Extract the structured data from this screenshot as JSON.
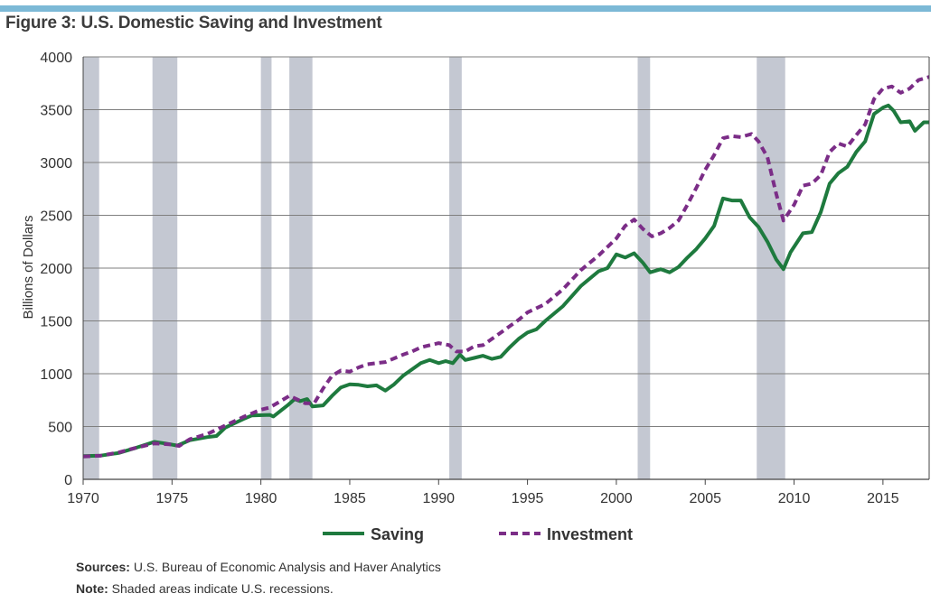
{
  "figure_title": "Figure 3: U.S. Domestic Saving and Investment",
  "sources_label": "Sources:",
  "sources_text": "U.S. Bureau of Economic Analysis and Haver Analytics",
  "note_label": "Note:",
  "note_text": "Shaded areas indicate U.S. recessions.",
  "colors": {
    "saving": "#1e7a3e",
    "investment": "#7b2d87",
    "recession": "#c4c8d2",
    "grid": "#7f7f7f",
    "rule": "#7cb9d6"
  },
  "chart_data": {
    "type": "line",
    "title": "",
    "xlabel": "",
    "ylabel": "Billions of Dollars",
    "xlim": [
      1970,
      2017.6
    ],
    "ylim": [
      0,
      4000
    ],
    "x_ticks": [
      1970,
      1975,
      1980,
      1985,
      1990,
      1995,
      2000,
      2005,
      2010,
      2015
    ],
    "y_ticks": [
      0,
      500,
      1000,
      1500,
      2000,
      2500,
      3000,
      3500,
      4000
    ],
    "grid": "horizontal",
    "legend": "bottom",
    "recessions": [
      [
        1969.9,
        1970.9
      ],
      [
        1973.9,
        1975.3
      ],
      [
        1980.0,
        1980.6
      ],
      [
        1981.6,
        1982.9
      ],
      [
        1990.6,
        1991.3
      ],
      [
        2001.2,
        2001.9
      ],
      [
        2007.9,
        2009.5
      ]
    ],
    "series": [
      {
        "name": "Saving",
        "style": "solid",
        "points": [
          [
            1970,
            220
          ],
          [
            1971,
            225
          ],
          [
            1972,
            250
          ],
          [
            1973,
            300
          ],
          [
            1974,
            355
          ],
          [
            1974.6,
            340
          ],
          [
            1975.3,
            320
          ],
          [
            1976,
            370
          ],
          [
            1977,
            400
          ],
          [
            1977.5,
            410
          ],
          [
            1978,
            490
          ],
          [
            1979,
            570
          ],
          [
            1979.5,
            605
          ],
          [
            1980.5,
            610
          ],
          [
            1980.7,
            595
          ],
          [
            1981.5,
            700
          ],
          [
            1981.9,
            760
          ],
          [
            1982.2,
            740
          ],
          [
            1982.6,
            760
          ],
          [
            1982.9,
            690
          ],
          [
            1983.5,
            700
          ],
          [
            1984,
            790
          ],
          [
            1984.5,
            870
          ],
          [
            1985,
            900
          ],
          [
            1985.5,
            895
          ],
          [
            1986,
            880
          ],
          [
            1986.5,
            890
          ],
          [
            1987,
            840
          ],
          [
            1987.5,
            900
          ],
          [
            1988,
            980
          ],
          [
            1988.5,
            1040
          ],
          [
            1989,
            1100
          ],
          [
            1989.5,
            1130
          ],
          [
            1990,
            1100
          ],
          [
            1990.4,
            1120
          ],
          [
            1990.8,
            1100
          ],
          [
            1991.2,
            1180
          ],
          [
            1991.5,
            1130
          ],
          [
            1992,
            1150
          ],
          [
            1992.5,
            1170
          ],
          [
            1993,
            1140
          ],
          [
            1993.5,
            1160
          ],
          [
            1994,
            1250
          ],
          [
            1994.5,
            1330
          ],
          [
            1995,
            1390
          ],
          [
            1995.5,
            1420
          ],
          [
            1996,
            1500
          ],
          [
            1997,
            1640
          ],
          [
            1998,
            1830
          ],
          [
            1998.5,
            1900
          ],
          [
            1999,
            1970
          ],
          [
            1999.5,
            2000
          ],
          [
            2000,
            2130
          ],
          [
            2000.5,
            2100
          ],
          [
            2001,
            2140
          ],
          [
            2001.5,
            2050
          ],
          [
            2001.9,
            1960
          ],
          [
            2002.5,
            1990
          ],
          [
            2003,
            1960
          ],
          [
            2003.5,
            2010
          ],
          [
            2004,
            2100
          ],
          [
            2004.5,
            2180
          ],
          [
            2005,
            2280
          ],
          [
            2005.5,
            2400
          ],
          [
            2006,
            2660
          ],
          [
            2006.5,
            2640
          ],
          [
            2007,
            2640
          ],
          [
            2007.5,
            2480
          ],
          [
            2008,
            2390
          ],
          [
            2008.5,
            2250
          ],
          [
            2009,
            2080
          ],
          [
            2009.4,
            1990
          ],
          [
            2009.8,
            2150
          ],
          [
            2010.5,
            2330
          ],
          [
            2011,
            2340
          ],
          [
            2011.5,
            2530
          ],
          [
            2012,
            2800
          ],
          [
            2012.5,
            2900
          ],
          [
            2013,
            2960
          ],
          [
            2013.5,
            3100
          ],
          [
            2014,
            3200
          ],
          [
            2014.5,
            3460
          ],
          [
            2015,
            3520
          ],
          [
            2015.3,
            3540
          ],
          [
            2015.6,
            3490
          ],
          [
            2016,
            3380
          ],
          [
            2016.5,
            3390
          ],
          [
            2016.8,
            3300
          ],
          [
            2017.3,
            3380
          ],
          [
            2017.6,
            3380
          ]
        ]
      },
      {
        "name": "Investment",
        "style": "dashed",
        "points": [
          [
            1970,
            215
          ],
          [
            1971,
            225
          ],
          [
            1972,
            255
          ],
          [
            1973,
            300
          ],
          [
            1974,
            340
          ],
          [
            1975,
            330
          ],
          [
            1975.4,
            315
          ],
          [
            1976,
            380
          ],
          [
            1977,
            430
          ],
          [
            1978,
            510
          ],
          [
            1979,
            590
          ],
          [
            1980,
            660
          ],
          [
            1980.5,
            680
          ],
          [
            1981,
            730
          ],
          [
            1981.6,
            790
          ],
          [
            1982,
            760
          ],
          [
            1982.5,
            720
          ],
          [
            1983,
            720
          ],
          [
            1983.5,
            860
          ],
          [
            1984,
            980
          ],
          [
            1984.5,
            1030
          ],
          [
            1985,
            1020
          ],
          [
            1985.5,
            1060
          ],
          [
            1986,
            1090
          ],
          [
            1987,
            1110
          ],
          [
            1988,
            1180
          ],
          [
            1988.5,
            1210
          ],
          [
            1989,
            1250
          ],
          [
            1989.5,
            1270
          ],
          [
            1990,
            1290
          ],
          [
            1990.6,
            1270
          ],
          [
            1991,
            1210
          ],
          [
            1991.5,
            1210
          ],
          [
            1992,
            1260
          ],
          [
            1992.5,
            1270
          ],
          [
            1993,
            1330
          ],
          [
            1994,
            1450
          ],
          [
            1994.5,
            1510
          ],
          [
            1995,
            1580
          ],
          [
            1996,
            1660
          ],
          [
            1997,
            1800
          ],
          [
            1998,
            1980
          ],
          [
            1998.5,
            2050
          ],
          [
            1999,
            2120
          ],
          [
            1999.5,
            2200
          ],
          [
            2000,
            2280
          ],
          [
            2000.5,
            2400
          ],
          [
            2001,
            2460
          ],
          [
            2001.5,
            2370
          ],
          [
            2002,
            2300
          ],
          [
            2002.5,
            2330
          ],
          [
            2003,
            2380
          ],
          [
            2003.5,
            2450
          ],
          [
            2004,
            2600
          ],
          [
            2004.5,
            2760
          ],
          [
            2005,
            2930
          ],
          [
            2005.5,
            3070
          ],
          [
            2006,
            3230
          ],
          [
            2006.5,
            3250
          ],
          [
            2007,
            3240
          ],
          [
            2007.6,
            3270
          ],
          [
            2008,
            3200
          ],
          [
            2008.5,
            3050
          ],
          [
            2009,
            2700
          ],
          [
            2009.4,
            2450
          ],
          [
            2010,
            2600
          ],
          [
            2010.5,
            2780
          ],
          [
            2011,
            2800
          ],
          [
            2011.5,
            2880
          ],
          [
            2012,
            3100
          ],
          [
            2012.5,
            3180
          ],
          [
            2013,
            3150
          ],
          [
            2013.5,
            3260
          ],
          [
            2014,
            3360
          ],
          [
            2014.5,
            3600
          ],
          [
            2015,
            3700
          ],
          [
            2015.5,
            3720
          ],
          [
            2016,
            3660
          ],
          [
            2016.5,
            3700
          ],
          [
            2017,
            3780
          ],
          [
            2017.6,
            3810
          ]
        ]
      }
    ]
  }
}
